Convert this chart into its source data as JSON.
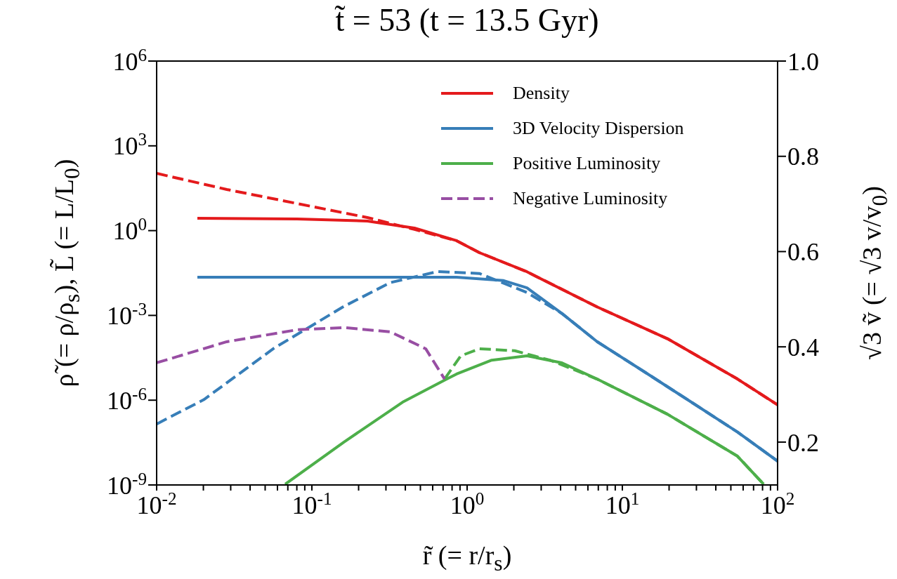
{
  "chart_data": {
    "type": "line",
    "title": "t̃ = 53 (t = 13.5 Gyr)",
    "xlabel": "r̃ (= r/r$_{s}$)",
    "ylabel": "ρ̃ (= ρ/ρ$_{s}$), L̃ (= L/L$_{0}$)",
    "y2label": "√3 ṽ (= √3 v/v$_{0}$)",
    "log": "xy",
    "legend": "top right",
    "xlim": [
      0.01,
      100
    ],
    "xticks": [
      {
        "value": 0.01,
        "label": "10$^{-2}$"
      },
      {
        "value": 0.02,
        "label": null
      },
      {
        "value": 0.03,
        "label": null
      },
      {
        "value": 0.04,
        "label": null
      },
      {
        "value": 0.05,
        "label": null
      },
      {
        "value": 0.06,
        "label": null
      },
      {
        "value": 0.07,
        "label": null
      },
      {
        "value": 0.08,
        "label": null
      },
      {
        "value": 0.09,
        "label": null
      },
      {
        "value": 0.1,
        "label": "10$^{-1}$"
      },
      {
        "value": 0.2,
        "label": null
      },
      {
        "value": 0.3,
        "label": null
      },
      {
        "value": 0.4,
        "label": null
      },
      {
        "value": 0.5,
        "label": null
      },
      {
        "value": 0.6,
        "label": null
      },
      {
        "value": 0.7,
        "label": null
      },
      {
        "value": 0.8,
        "label": null
      },
      {
        "value": 0.9,
        "label": null
      },
      {
        "value": 1,
        "label": "10$^{0}$"
      },
      {
        "value": 2,
        "label": null
      },
      {
        "value": 3,
        "label": null
      },
      {
        "value": 4,
        "label": null
      },
      {
        "value": 5,
        "label": null
      },
      {
        "value": 6,
        "label": null
      },
      {
        "value": 7,
        "label": null
      },
      {
        "value": 8,
        "label": null
      },
      {
        "value": 9,
        "label": null
      },
      {
        "value": 10,
        "label": "10$^{1}$"
      },
      {
        "value": 20,
        "label": null
      },
      {
        "value": 30,
        "label": null
      },
      {
        "value": 40,
        "label": null
      },
      {
        "value": 50,
        "label": null
      },
      {
        "value": 60,
        "label": null
      },
      {
        "value": 70,
        "label": null
      },
      {
        "value": 80,
        "label": null
      },
      {
        "value": 90,
        "label": null
      },
      {
        "value": 100,
        "label": "10$^{2}$"
      }
    ],
    "ylim": [
      1e-09,
      1000000.0
    ],
    "yticks": [
      {
        "value": 1e-09,
        "label": "10$^{-9}$"
      },
      {
        "value": 1e-06,
        "label": "10$^{-6}$"
      },
      {
        "value": 0.001,
        "label": "10$^{-3}$"
      },
      {
        "value": 1,
        "label": "10$^{0}$"
      },
      {
        "value": 1000,
        "label": "10$^{3}$"
      },
      {
        "value": 1000000,
        "label": "10$^{6}$"
      }
    ],
    "y2lim": [
      0.11,
      1
    ],
    "y2ticks": [
      0.2,
      0.4,
      0.6,
      0.8,
      {
        "value": 1,
        "label": "1.0"
      }
    ],
    "series": [
      {
        "name": "Density",
        "color": "#e41a1c",
        "line_style": "solid",
        "x": [
          0.0183,
          0.0803,
          0.228,
          0.458,
          0.855,
          1.2,
          2.43,
          6.87,
          19.5,
          55.2,
          100
        ],
        "values": [
          2.74,
          2.59,
          2.18,
          1.23,
          0.44,
          0.166,
          0.035,
          0.002,
          0.00015,
          5.6e-06,
          6.8e-07
        ]
      },
      {
        "color": "#e41a1c",
        "line_style": "dashed",
        "x": [
          0.01,
          0.0283,
          0.0803,
          0.228,
          0.458,
          0.855,
          1.2,
          2.43,
          6.87,
          19.5,
          55.2,
          100
        ],
        "values": [
          106,
          28.6,
          9.1,
          2.9,
          1.1,
          0.44,
          0.166,
          0.035,
          0.002,
          0.00015,
          5.6e-06,
          6.8e-07
        ]
      },
      {
        "name": "3D Velocity Dispersion",
        "color": "#377eb8",
        "line_style": "solid",
        "axis": "y2",
        "x": [
          0.0183,
          0.3,
          0.855,
          1.72,
          2.43,
          4.08,
          6.87,
          13.8,
          27.5,
          55.2,
          100
        ],
        "values": [
          0.546,
          0.546,
          0.546,
          0.539,
          0.524,
          0.47,
          0.411,
          0.348,
          0.285,
          0.221,
          0.16
        ]
      },
      {
        "color": "#377eb8",
        "line_style": "dashed",
        "axis": "y2",
        "x": [
          0.01,
          0.0201,
          0.057,
          0.161,
          0.321,
          0.645,
          1.2,
          2.43,
          4.08,
          6.87,
          13.8,
          27.5,
          55.2,
          100
        ],
        "values": [
          0.238,
          0.289,
          0.397,
          0.485,
          0.535,
          0.558,
          0.554,
          0.514,
          0.47,
          0.411,
          0.348,
          0.285,
          0.221,
          0.16
        ]
      },
      {
        "name": "Positive Luminosity",
        "color": "#4daf4a",
        "line_style": "solid",
        "x": [
          0.0673,
          0.161,
          0.384,
          0.74,
          0.855,
          1.44,
          2.43,
          4.08,
          6.87,
          19.5,
          55.2,
          81.3
        ],
        "values": [
          1.06e-09,
          3.3e-08,
          8.5e-07,
          5.6e-06,
          8.4e-06,
          2.6e-05,
          3.7e-05,
          2.1e-05,
          5.6e-06,
          3.2e-07,
          1.04e-08,
          1.06e-09
        ]
      },
      {
        "color": "#4daf4a",
        "line_style": "dashed",
        "x": [
          0.716,
          0.91,
          1.2,
          2.03,
          3.42,
          4.88,
          6.87,
          19.5,
          55.2,
          81.3
        ],
        "values": [
          5.6e-06,
          3.7e-05,
          6.6e-05,
          5.6e-05,
          2.6e-05,
          1.2e-05,
          5.6e-06,
          3.2e-07,
          1.04e-08,
          1.06e-09
        ]
      },
      {
        "name": "Negative Luminosity",
        "color": "#984ea3",
        "line_style": "dashed",
        "x": [
          0.01,
          0.0283,
          0.0803,
          0.161,
          0.321,
          0.541,
          0.716
        ],
        "values": [
          2.1e-05,
          0.000117,
          0.00031,
          0.00037,
          0.00026,
          6.6e-05,
          5.6e-06
        ]
      }
    ]
  }
}
